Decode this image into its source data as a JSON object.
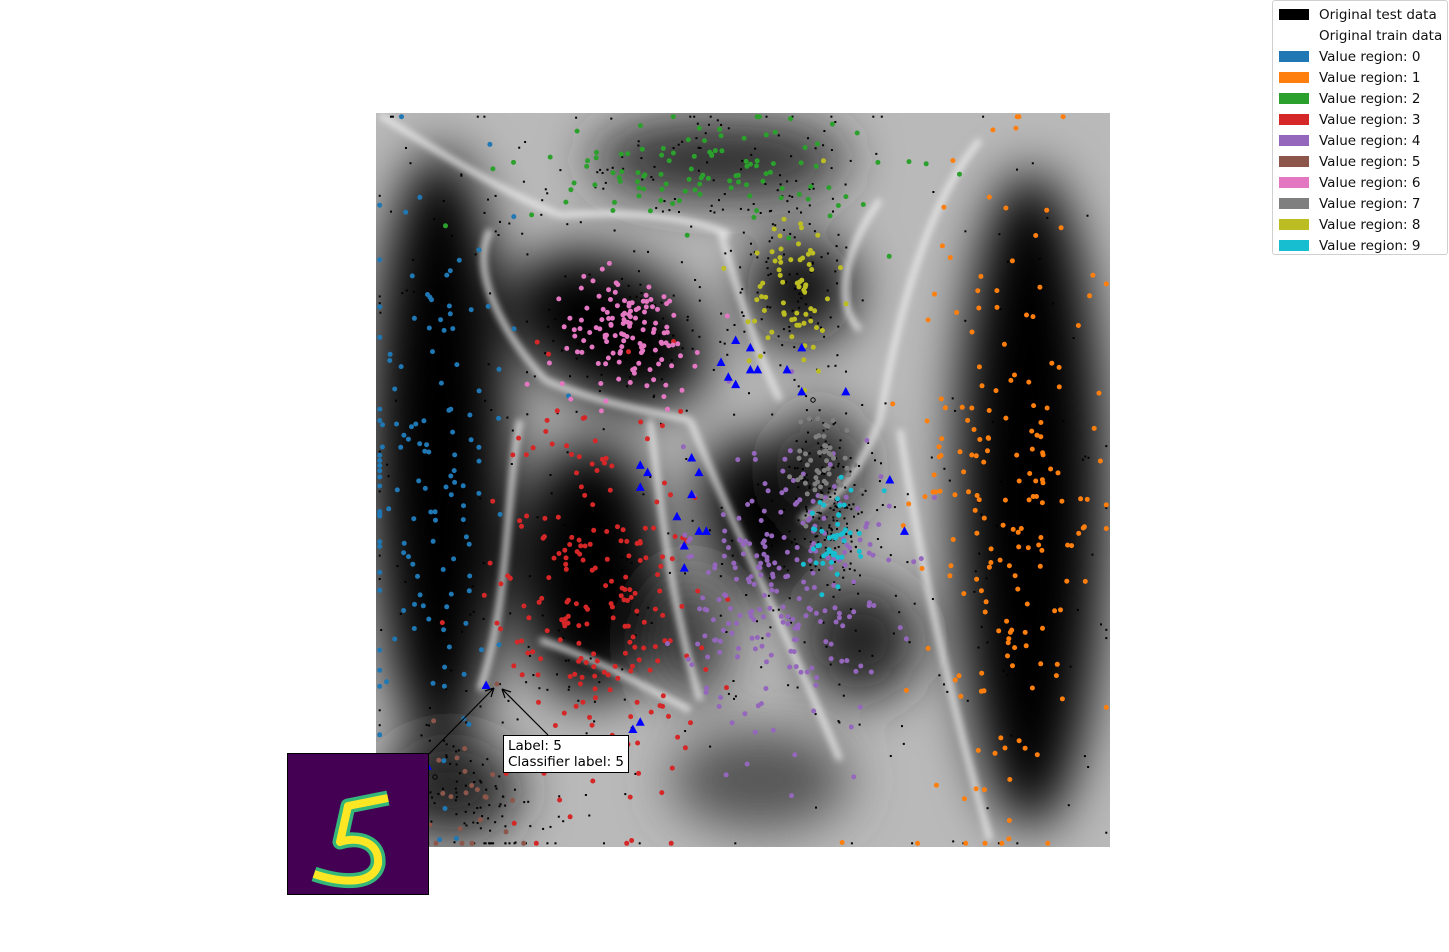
{
  "chart_data": {
    "type": "scatter",
    "title": "",
    "xlabel": "",
    "ylabel": "",
    "axes_visible": false,
    "grid": false,
    "background": "grayscale decision-boundary map (white = region boundaries, black = region centers)",
    "legend_position": "upper-right",
    "legend": [
      {
        "label": "Original test data",
        "color": "#000000"
      },
      {
        "label": "Original train data",
        "color": "#ffffff"
      },
      {
        "label": "Value region: 0",
        "color": "#1f77b4"
      },
      {
        "label": "Value region: 1",
        "color": "#ff7f0e"
      },
      {
        "label": "Value region: 2",
        "color": "#2ca02c"
      },
      {
        "label": "Value region: 3",
        "color": "#d62728"
      },
      {
        "label": "Value region: 4",
        "color": "#9467bd"
      },
      {
        "label": "Value region: 5",
        "color": "#8c564b"
      },
      {
        "label": "Value region: 6",
        "color": "#e377c2"
      },
      {
        "label": "Value region: 7",
        "color": "#7f7f7f"
      },
      {
        "label": "Value region: 8",
        "color": "#bcbd22"
      },
      {
        "label": "Value region: 9",
        "color": "#17becf"
      }
    ],
    "xlim": [
      0,
      1
    ],
    "ylim": [
      0,
      1
    ],
    "series": [
      {
        "region": "0",
        "color": "#1f77b4",
        "cx": 0.07,
        "cy": 0.52,
        "sx": 0.06,
        "sy": 0.22,
        "n": 140
      },
      {
        "region": "1",
        "color": "#ff7f0e",
        "cx": 0.86,
        "cy": 0.47,
        "sx": 0.07,
        "sy": 0.22,
        "n": 190
      },
      {
        "region": "2",
        "color": "#2ca02c",
        "cx": 0.45,
        "cy": 0.92,
        "sx": 0.12,
        "sy": 0.04,
        "n": 110
      },
      {
        "region": "3",
        "color": "#d62728",
        "cx": 0.3,
        "cy": 0.34,
        "sx": 0.07,
        "sy": 0.14,
        "n": 220
      },
      {
        "region": "4",
        "color": "#9467bd",
        "cx": 0.56,
        "cy": 0.36,
        "sx": 0.07,
        "sy": 0.1,
        "n": 240
      },
      {
        "region": "5",
        "color": "#8c564b",
        "cx": 0.13,
        "cy": 0.08,
        "sx": 0.04,
        "sy": 0.05,
        "n": 25
      },
      {
        "region": "6",
        "color": "#e377c2",
        "cx": 0.34,
        "cy": 0.7,
        "sx": 0.05,
        "sy": 0.04,
        "n": 130
      },
      {
        "region": "7",
        "color": "#7f7f7f",
        "cx": 0.61,
        "cy": 0.52,
        "sx": 0.02,
        "sy": 0.04,
        "n": 60
      },
      {
        "region": "8",
        "color": "#bcbd22",
        "cx": 0.57,
        "cy": 0.76,
        "sx": 0.03,
        "sy": 0.06,
        "n": 70
      },
      {
        "region": "9",
        "color": "#17becf",
        "cx": 0.62,
        "cy": 0.42,
        "sx": 0.02,
        "sy": 0.03,
        "n": 45
      }
    ],
    "test_points": {
      "color": "#000000",
      "n": 900
    },
    "highlight_markers": {
      "shape": "triangle",
      "color": "#0000ff",
      "points": [
        [
          0.49,
          0.69
        ],
        [
          0.51,
          0.68
        ],
        [
          0.47,
          0.66
        ],
        [
          0.48,
          0.64
        ],
        [
          0.51,
          0.65
        ],
        [
          0.52,
          0.65
        ],
        [
          0.49,
          0.63
        ],
        [
          0.56,
          0.65
        ],
        [
          0.58,
          0.62
        ],
        [
          0.64,
          0.62
        ],
        [
          0.43,
          0.53
        ],
        [
          0.44,
          0.51
        ],
        [
          0.36,
          0.52
        ],
        [
          0.37,
          0.51
        ],
        [
          0.36,
          0.49
        ],
        [
          0.43,
          0.48
        ],
        [
          0.41,
          0.45
        ],
        [
          0.44,
          0.43
        ],
        [
          0.45,
          0.43
        ],
        [
          0.42,
          0.41
        ],
        [
          0.42,
          0.38
        ],
        [
          0.7,
          0.5
        ],
        [
          0.72,
          0.43
        ],
        [
          0.15,
          0.22
        ],
        [
          0.36,
          0.17
        ],
        [
          0.35,
          0.16
        ],
        [
          0.07,
          0.11
        ],
        [
          0.58,
          0.68
        ]
      ]
    },
    "annotation": {
      "text_lines": [
        "Label: 5",
        "Classifier label: 5"
      ],
      "point": [
        0.165,
        0.22
      ]
    }
  }
}
